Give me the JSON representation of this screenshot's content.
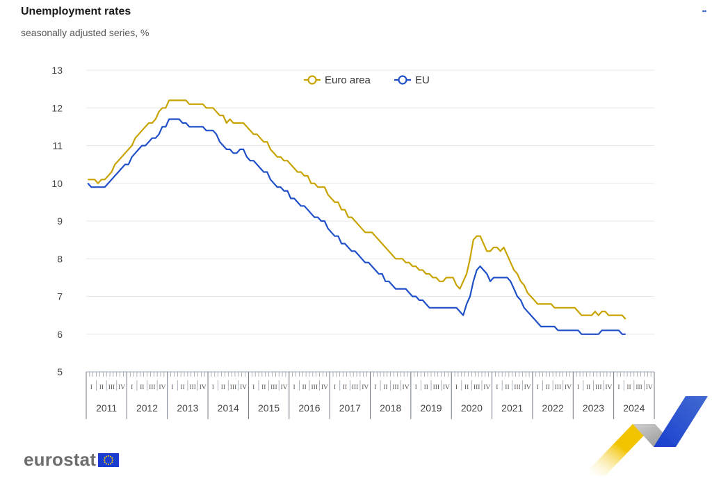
{
  "header": {
    "title": "Unemployment rates",
    "subtitle": "seasonally adjusted series, %"
  },
  "logo": {
    "text": "eurostat"
  },
  "icons": {
    "menu": "menu-dots-icon",
    "flag": "eu-flag-icon"
  },
  "colors": {
    "euro_area": "#c9a300",
    "eu": "#2050c8",
    "grid": "#e3e7ee",
    "deco_yellow": "#f2c400",
    "deco_blue": "#1a3fd0",
    "deco_grey": "#a7a7a7"
  },
  "chart_data": {
    "type": "line",
    "title": "Unemployment rates",
    "subtitle": "seasonally adjusted series, %",
    "xlabel": "",
    "ylabel": "",
    "ylim": [
      5,
      13
    ],
    "yticks": [
      "13",
      "12",
      "11",
      "10",
      "9",
      "8",
      "7",
      "6",
      "5"
    ],
    "grid": true,
    "legend": "top-center",
    "x_start": "2011-01",
    "x_frequency": "monthly",
    "years": [
      "2011",
      "2012",
      "2013",
      "2014",
      "2015",
      "2016",
      "2017",
      "2018",
      "2019",
      "2020",
      "2021",
      "2022",
      "2023",
      "2024"
    ],
    "quarters": [
      "I",
      "II",
      "III",
      "IV"
    ],
    "series": [
      {
        "name": "Euro area",
        "color": "#c9a300",
        "values": [
          10.1,
          10.1,
          10.1,
          10.0,
          10.1,
          10.1,
          10.2,
          10.3,
          10.5,
          10.6,
          10.7,
          10.8,
          10.9,
          11.0,
          11.2,
          11.3,
          11.4,
          11.5,
          11.6,
          11.6,
          11.7,
          11.9,
          12.0,
          12.0,
          12.2,
          12.2,
          12.2,
          12.2,
          12.2,
          12.2,
          12.1,
          12.1,
          12.1,
          12.1,
          12.1,
          12.0,
          12.0,
          12.0,
          11.9,
          11.8,
          11.8,
          11.6,
          11.7,
          11.6,
          11.6,
          11.6,
          11.6,
          11.5,
          11.4,
          11.3,
          11.3,
          11.2,
          11.1,
          11.1,
          10.9,
          10.8,
          10.7,
          10.7,
          10.6,
          10.6,
          10.5,
          10.4,
          10.3,
          10.3,
          10.2,
          10.2,
          10.0,
          10.0,
          9.9,
          9.9,
          9.9,
          9.7,
          9.6,
          9.5,
          9.5,
          9.3,
          9.3,
          9.1,
          9.1,
          9.0,
          8.9,
          8.8,
          8.7,
          8.7,
          8.7,
          8.6,
          8.5,
          8.4,
          8.3,
          8.2,
          8.1,
          8.0,
          8.0,
          8.0,
          7.9,
          7.9,
          7.8,
          7.8,
          7.7,
          7.7,
          7.6,
          7.6,
          7.5,
          7.5,
          7.4,
          7.4,
          7.5,
          7.5,
          7.5,
          7.3,
          7.2,
          7.4,
          7.6,
          8.0,
          8.5,
          8.6,
          8.6,
          8.4,
          8.2,
          8.2,
          8.3,
          8.3,
          8.2,
          8.3,
          8.1,
          7.9,
          7.7,
          7.6,
          7.4,
          7.3,
          7.1,
          7.0,
          6.9,
          6.8,
          6.8,
          6.8,
          6.8,
          6.8,
          6.7,
          6.7,
          6.7,
          6.7,
          6.7,
          6.7,
          6.7,
          6.6,
          6.5,
          6.5,
          6.5,
          6.5,
          6.6,
          6.5,
          6.6,
          6.6,
          6.5,
          6.5,
          6.5,
          6.5,
          6.5,
          6.4
        ]
      },
      {
        "name": "EU",
        "color": "#2050c8",
        "values": [
          10.0,
          9.9,
          9.9,
          9.9,
          9.9,
          9.9,
          10.0,
          10.1,
          10.2,
          10.3,
          10.4,
          10.5,
          10.5,
          10.7,
          10.8,
          10.9,
          11.0,
          11.0,
          11.1,
          11.2,
          11.2,
          11.3,
          11.5,
          11.5,
          11.7,
          11.7,
          11.7,
          11.7,
          11.6,
          11.6,
          11.5,
          11.5,
          11.5,
          11.5,
          11.5,
          11.4,
          11.4,
          11.4,
          11.3,
          11.1,
          11.0,
          10.9,
          10.9,
          10.8,
          10.8,
          10.9,
          10.9,
          10.7,
          10.6,
          10.6,
          10.5,
          10.4,
          10.3,
          10.3,
          10.1,
          10.0,
          9.9,
          9.9,
          9.8,
          9.8,
          9.6,
          9.6,
          9.5,
          9.4,
          9.4,
          9.3,
          9.2,
          9.1,
          9.1,
          9.0,
          9.0,
          8.8,
          8.7,
          8.6,
          8.6,
          8.4,
          8.4,
          8.3,
          8.2,
          8.2,
          8.1,
          8.0,
          7.9,
          7.9,
          7.8,
          7.7,
          7.6,
          7.6,
          7.4,
          7.4,
          7.3,
          7.2,
          7.2,
          7.2,
          7.2,
          7.1,
          7.0,
          7.0,
          6.9,
          6.9,
          6.8,
          6.7,
          6.7,
          6.7,
          6.7,
          6.7,
          6.7,
          6.7,
          6.7,
          6.7,
          6.6,
          6.5,
          6.8,
          7.0,
          7.4,
          7.7,
          7.8,
          7.7,
          7.6,
          7.4,
          7.5,
          7.5,
          7.5,
          7.5,
          7.5,
          7.4,
          7.2,
          7.0,
          6.9,
          6.7,
          6.6,
          6.5,
          6.4,
          6.3,
          6.2,
          6.2,
          6.2,
          6.2,
          6.2,
          6.1,
          6.1,
          6.1,
          6.1,
          6.1,
          6.1,
          6.1,
          6.0,
          6.0,
          6.0,
          6.0,
          6.0,
          6.0,
          6.1,
          6.1,
          6.1,
          6.1,
          6.1,
          6.1,
          6.0,
          6.0
        ]
      }
    ]
  }
}
